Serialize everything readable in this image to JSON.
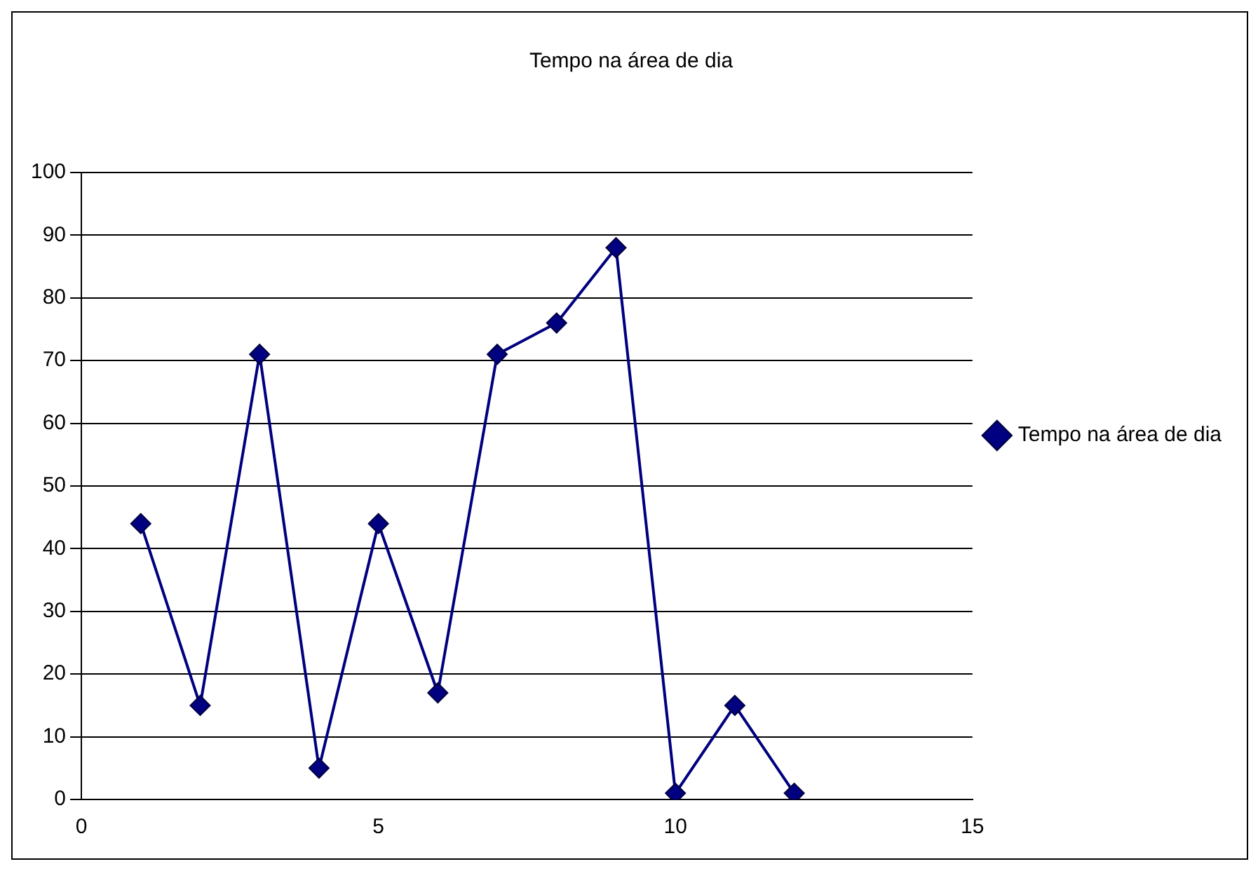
{
  "chart_data": {
    "type": "line",
    "title": "Tempo na área de dia",
    "x": [
      1,
      2,
      3,
      4,
      5,
      6,
      7,
      8,
      9,
      10,
      11,
      12
    ],
    "series": [
      {
        "name": "Tempo na área de dia",
        "color": "#000080",
        "values": [
          44,
          15,
          71,
          5,
          44,
          17,
          71,
          76,
          88,
          1,
          15,
          1
        ]
      }
    ],
    "xlim": [
      0,
      15
    ],
    "xticks": [
      0,
      5,
      10,
      15
    ],
    "ylim": [
      0,
      100
    ],
    "yticks": [
      0,
      10,
      20,
      30,
      40,
      50,
      60,
      70,
      80,
      90,
      100
    ],
    "grid": "y",
    "legend": "right",
    "marker": "diamond",
    "line_style": "solid"
  }
}
